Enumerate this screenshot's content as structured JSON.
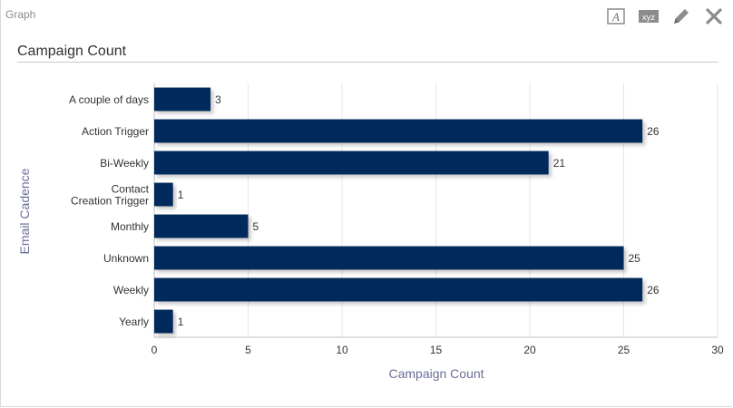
{
  "panel": {
    "title": "Graph"
  },
  "toolbar": {
    "icons": [
      "text-format-icon",
      "data-labels-icon",
      "pencil-icon",
      "close-icon"
    ],
    "labels_text": "xyz"
  },
  "colors": {
    "bar": "#002b5c",
    "grid": "#e6e6e6",
    "axis": "#c0c0c0",
    "label": "#333333",
    "axis_title": "#6b6f96"
  },
  "chart_data": {
    "type": "bar",
    "orientation": "horizontal",
    "title": "Campaign Count",
    "xlabel": "Campaign Count",
    "ylabel": "Email Cadence",
    "categories": [
      "A couple of days",
      "Action Trigger",
      "Bi-Weekly",
      "Contact Creation Trigger",
      "Monthly",
      "Unknown",
      "Weekly",
      "Yearly"
    ],
    "values": [
      3,
      26,
      21,
      1,
      5,
      25,
      26,
      1
    ],
    "xlim": [
      0,
      30
    ],
    "xticks": [
      0,
      5,
      10,
      15,
      20,
      25,
      30
    ],
    "grid": true,
    "legend": "none"
  }
}
